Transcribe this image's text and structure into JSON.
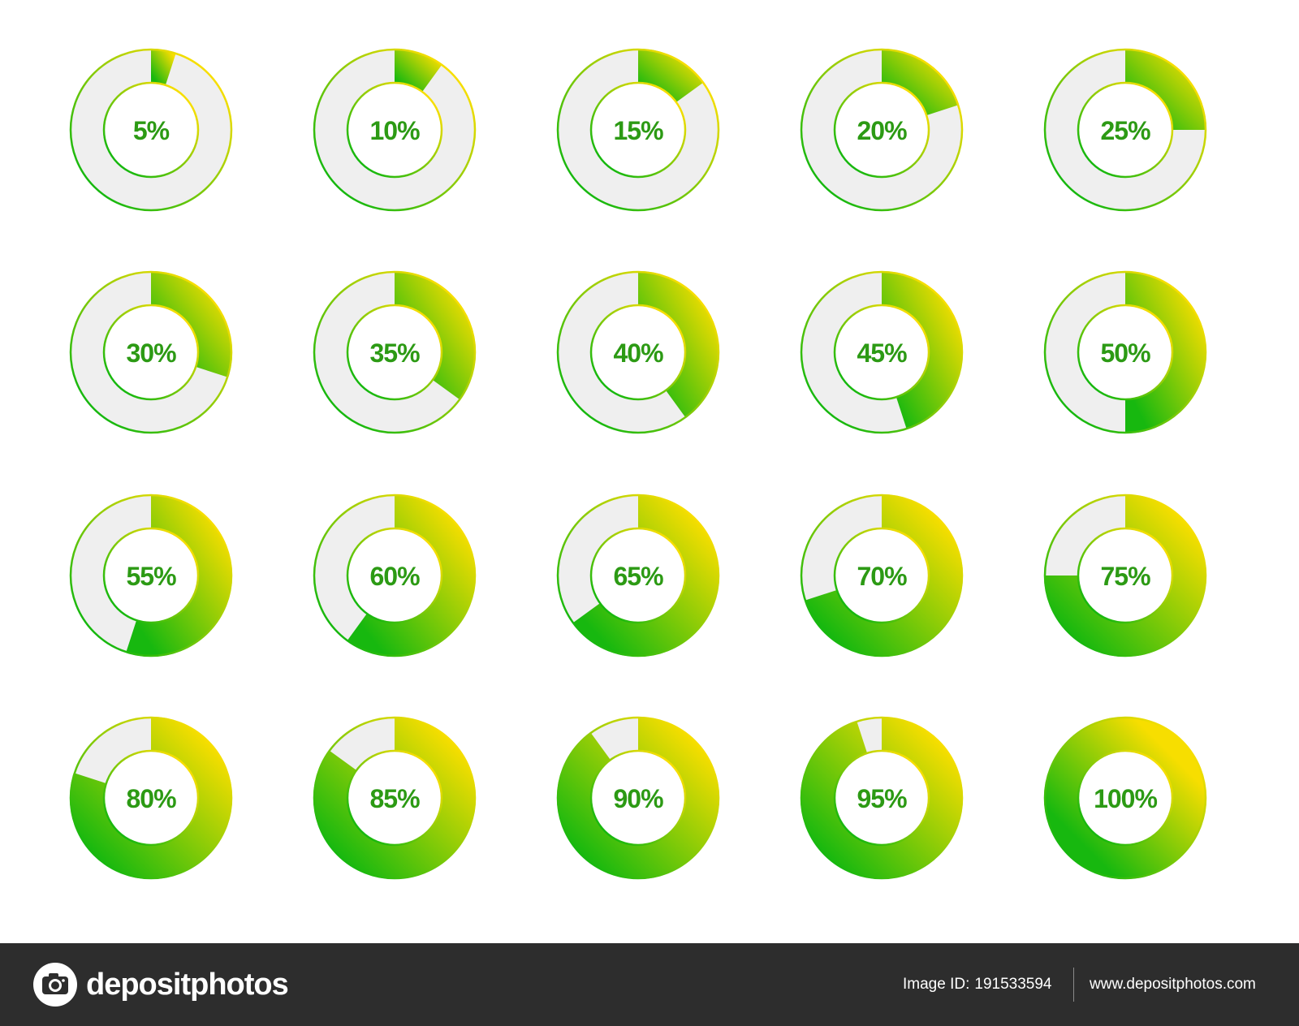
{
  "colors": {
    "green": "#17b80f",
    "yellow": "#f7de00",
    "track": "#efefef",
    "label": "#2c9a14",
    "footer_background": "#2d2d2d",
    "footer_text": "#ffffff"
  },
  "donuts": [
    {
      "label": "5%",
      "value": 5
    },
    {
      "label": "10%",
      "value": 10
    },
    {
      "label": "15%",
      "value": 15
    },
    {
      "label": "20%",
      "value": 20
    },
    {
      "label": "25%",
      "value": 25
    },
    {
      "label": "30%",
      "value": 30
    },
    {
      "label": "35%",
      "value": 35
    },
    {
      "label": "40%",
      "value": 40
    },
    {
      "label": "45%",
      "value": 45
    },
    {
      "label": "50%",
      "value": 50
    },
    {
      "label": "55%",
      "value": 55
    },
    {
      "label": "60%",
      "value": 60
    },
    {
      "label": "65%",
      "value": 65
    },
    {
      "label": "70%",
      "value": 70
    },
    {
      "label": "75%",
      "value": 75
    },
    {
      "label": "80%",
      "value": 80
    },
    {
      "label": "85%",
      "value": 85
    },
    {
      "label": "90%",
      "value": 90
    },
    {
      "label": "95%",
      "value": 95
    },
    {
      "label": "100%",
      "value": 100
    }
  ],
  "footer": {
    "brand": "depositphotos",
    "brand_icon": "camera-icon",
    "image_id_label": "Image ID:",
    "image_id": "191533594",
    "url": "www.depositphotos.com"
  }
}
